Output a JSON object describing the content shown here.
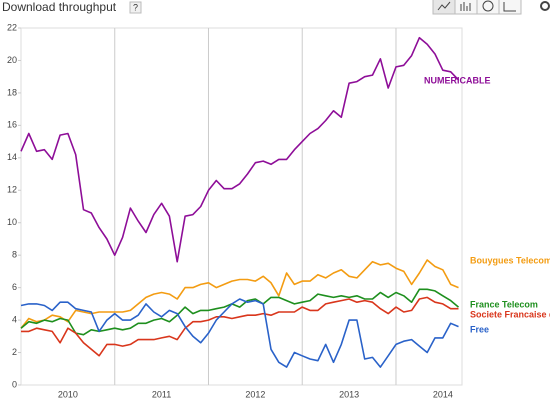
{
  "chart_data": {
    "type": "line",
    "title": "Download throughput",
    "help": "?",
    "categories": [
      null,
      null,
      null,
      null,
      null,
      null,
      "2010",
      null,
      null,
      null,
      null,
      null,
      null,
      null,
      null,
      null,
      null,
      null,
      "2011",
      null,
      null,
      null,
      null,
      null,
      null,
      null,
      null,
      null,
      null,
      null,
      "2012",
      null,
      null,
      null,
      null,
      null,
      null,
      null,
      null,
      null,
      null,
      null,
      "2013",
      null,
      null,
      null,
      null,
      null,
      null,
      null,
      null,
      null,
      null,
      null,
      "2014",
      null,
      null
    ],
    "ylim": [
      0,
      22
    ],
    "yticks": [
      0,
      2,
      4,
      6,
      8,
      10,
      12,
      14,
      16,
      18,
      20,
      22
    ],
    "series": [
      {
        "name": "NUMERICABLE",
        "color": "#8e0e98",
        "values": [
          14.4,
          15.5,
          14.4,
          14.5,
          13.9,
          15.4,
          15.5,
          14.2,
          10.8,
          10.6,
          9.7,
          9.0,
          8.0,
          9.1,
          10.9,
          10.1,
          9.4,
          10.5,
          11.2,
          10.4,
          7.6,
          10.4,
          10.5,
          11.0,
          12.0,
          12.6,
          12.1,
          12.1,
          12.4,
          13.0,
          13.7,
          13.8,
          13.6,
          13.9,
          13.9,
          14.5,
          15.0,
          15.5,
          15.8,
          16.3,
          16.9,
          16.5,
          18.6,
          18.7,
          19.0,
          19.1,
          20.1,
          18.3,
          19.6,
          19.7,
          20.3,
          21.4,
          21.0,
          20.4,
          19.4,
          19.3,
          18.8
        ]
      },
      {
        "name": "Bouygues Telecom",
        "color": "#f39c12",
        "values": [
          3.5,
          4.1,
          3.9,
          4.0,
          4.3,
          4.2,
          3.9,
          4.6,
          4.5,
          4.4,
          4.5,
          4.5,
          4.5,
          4.5,
          4.6,
          5.0,
          5.4,
          5.6,
          5.7,
          5.6,
          5.3,
          6.0,
          6.0,
          6.2,
          6.3,
          6.0,
          6.2,
          6.4,
          6.5,
          6.5,
          6.4,
          6.7,
          6.3,
          5.5,
          6.9,
          6.2,
          6.4,
          6.4,
          6.8,
          6.6,
          6.9,
          7.1,
          6.7,
          6.6,
          7.1,
          7.6,
          7.4,
          7.5,
          7.2,
          7.0,
          6.2,
          6.9,
          7.7,
          7.3,
          7.1,
          6.2,
          6.0
        ]
      },
      {
        "name": "France Telecom",
        "color": "#1e8f1e",
        "values": [
          3.5,
          3.9,
          3.8,
          4.0,
          3.9,
          4.1,
          4.0,
          3.2,
          3.1,
          3.4,
          3.3,
          3.4,
          3.5,
          3.4,
          3.5,
          3.8,
          3.8,
          4.0,
          4.1,
          3.9,
          4.3,
          4.8,
          4.4,
          4.6,
          4.6,
          4.7,
          4.8,
          5.0,
          4.8,
          5.2,
          5.3,
          5.0,
          5.4,
          5.4,
          5.2,
          5.0,
          5.1,
          5.2,
          5.6,
          5.5,
          5.4,
          5.5,
          5.4,
          5.5,
          5.3,
          5.3,
          5.7,
          5.4,
          5.7,
          5.5,
          5.1,
          5.9,
          5.9,
          5.8,
          5.5,
          5.2,
          4.8
        ]
      },
      {
        "name": "Societe Francaise du",
        "color": "#d9361c",
        "values": [
          3.3,
          3.3,
          3.5,
          3.4,
          3.3,
          2.6,
          3.5,
          3.2,
          2.6,
          2.2,
          1.8,
          2.5,
          2.5,
          2.4,
          2.5,
          2.8,
          2.8,
          2.8,
          2.9,
          3.0,
          2.8,
          3.5,
          3.9,
          3.9,
          4.0,
          4.2,
          4.2,
          4.1,
          4.2,
          4.3,
          4.3,
          4.4,
          4.3,
          4.5,
          4.5,
          4.5,
          4.8,
          4.6,
          4.6,
          5.0,
          5.1,
          5.2,
          5.3,
          5.1,
          5.2,
          5.1,
          4.7,
          4.4,
          4.8,
          4.5,
          4.6,
          5.3,
          5.4,
          5.1,
          5.0,
          4.7,
          4.7
        ]
      },
      {
        "name": "Free",
        "color": "#2a62c9",
        "values": [
          4.9,
          5.0,
          5.0,
          4.9,
          4.6,
          5.1,
          5.1,
          4.7,
          4.6,
          4.5,
          3.3,
          4.0,
          4.4,
          4.0,
          4.0,
          4.3,
          5.0,
          4.5,
          4.2,
          4.6,
          4.4,
          3.6,
          3.0,
          2.6,
          3.2,
          4.0,
          4.5,
          5.0,
          5.3,
          5.1,
          5.2,
          5.0,
          2.2,
          1.4,
          1.1,
          2.0,
          1.8,
          1.6,
          1.5,
          2.5,
          1.4,
          2.5,
          4.0,
          4.0,
          1.6,
          1.7,
          1.1,
          1.8,
          2.5,
          2.7,
          2.8,
          2.4,
          2.0,
          2.9,
          2.9,
          3.8,
          3.6
        ]
      }
    ]
  }
}
